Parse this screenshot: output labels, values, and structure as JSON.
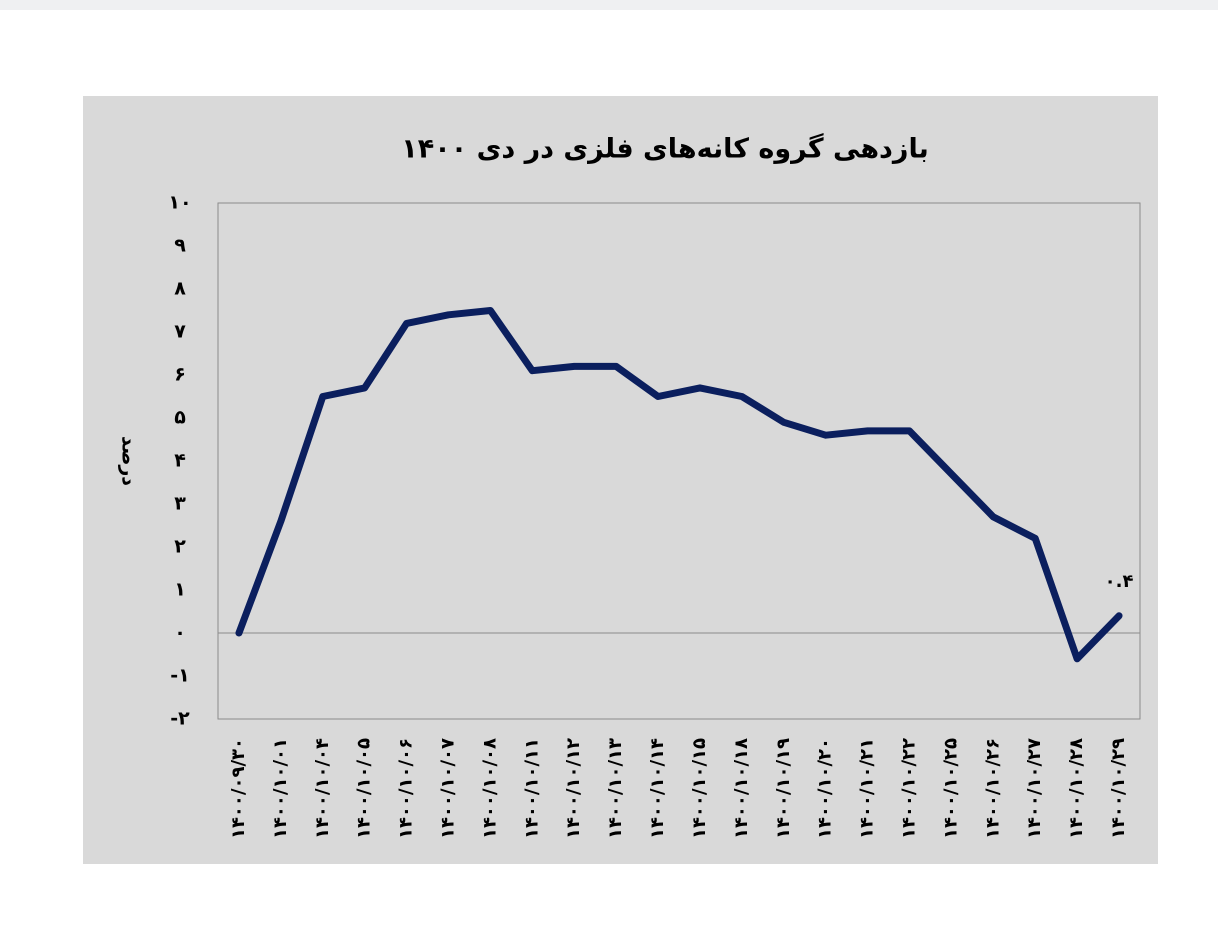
{
  "chart_data": {
    "type": "line",
    "title": "بازدهی گروه کانه‌های فلزی در دی ۱۴۰۰",
    "y_label": "درصد",
    "categories": [
      "۱۴۰۰/۰۹/۳۰",
      "۱۴۰۰/۱۰/۰۱",
      "۱۴۰۰/۱۰/۰۴",
      "۱۴۰۰/۱۰/۰۵",
      "۱۴۰۰/۱۰/۰۶",
      "۱۴۰۰/۱۰/۰۷",
      "۱۴۰۰/۱۰/۰۸",
      "۱۴۰۰/۱۰/۱۱",
      "۱۴۰۰/۱۰/۱۲",
      "۱۴۰۰/۱۰/۱۳",
      "۱۴۰۰/۱۰/۱۴",
      "۱۴۰۰/۱۰/۱۵",
      "۱۴۰۰/۱۰/۱۸",
      "۱۴۰۰/۱۰/۱۹",
      "۱۴۰۰/۱۰/۲۰",
      "۱۴۰۰/۱۰/۲۱",
      "۱۴۰۰/۱۰/۲۲",
      "۱۴۰۰/۱۰/۲۵",
      "۱۴۰۰/۱۰/۲۶",
      "۱۴۰۰/۱۰/۲۷",
      "۱۴۰۰/۱۰/۲۸",
      "۱۴۰۰/۱۰/۲۹"
    ],
    "values": [
      0,
      2.6,
      5.5,
      5.7,
      7.2,
      7.4,
      7.5,
      6.1,
      6.2,
      6.2,
      5.5,
      5.7,
      5.5,
      4.9,
      4.6,
      4.7,
      4.7,
      3.7,
      2.7,
      2.2,
      -0.6,
      0.4
    ],
    "value_labels": [
      null,
      null,
      null,
      null,
      null,
      null,
      null,
      null,
      null,
      null,
      null,
      null,
      null,
      null,
      null,
      null,
      null,
      null,
      null,
      null,
      null,
      "۰.۴"
    ],
    "color": "#0b1f5e",
    "ylim": [
      -2,
      10
    ],
    "yticks": [
      {
        "value": -2,
        "label": "-۲"
      },
      {
        "value": -1,
        "label": "-۱"
      },
      {
        "value": 0,
        "label": "۰"
      },
      {
        "value": 1,
        "label": "۱"
      },
      {
        "value": 2,
        "label": "۲"
      },
      {
        "value": 3,
        "label": "۳"
      },
      {
        "value": 4,
        "label": "۴"
      },
      {
        "value": 5,
        "label": "۵"
      },
      {
        "value": 6,
        "label": "۶"
      },
      {
        "value": 7,
        "label": "۷"
      },
      {
        "value": 8,
        "label": "۸"
      },
      {
        "value": 9,
        "label": "۹"
      },
      {
        "value": 10,
        "label": "۱۰"
      }
    ]
  }
}
